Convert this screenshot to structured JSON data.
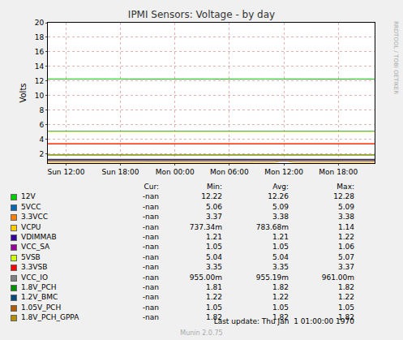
{
  "chart_data": {
    "type": "line",
    "title": "IPMI Sensors: Voltage - by day",
    "y_label": "Volts",
    "categories": [
      null,
      null,
      "Sun 12:00",
      null,
      null,
      null,
      null,
      null,
      "Sun 18:00",
      null,
      null,
      null,
      null,
      null,
      "Mon 00:00",
      null,
      null,
      null,
      null,
      null,
      "Mon 06:00",
      null,
      null,
      null,
      null,
      null,
      "Mon 12:00",
      null,
      null,
      null,
      null,
      null,
      "Mon 18:00",
      null,
      null,
      null,
      null
    ],
    "ylim": [
      0.7,
      20
    ],
    "yticks": [
      2,
      4,
      6,
      8,
      10,
      12,
      14,
      16,
      18,
      20
    ],
    "grid": true,
    "series": [
      {
        "name": "12V",
        "color": "#00CC00",
        "stats": {
          "cur": "-nan",
          "min": "12.22",
          "avg": "12.26",
          "max": "12.28"
        },
        "values": [
          12.26,
          12.27,
          12.25,
          12.26,
          12.28,
          12.26,
          12.24,
          12.26,
          12.27,
          12.25,
          12.26,
          12.22,
          12.26,
          12.27,
          12.26,
          12.25,
          12.26,
          12.28,
          12.26,
          12.25,
          12.27,
          12.26,
          12.24,
          12.26,
          12.27,
          12.26,
          12.25,
          12.26,
          12.28,
          12.26,
          12.25,
          12.26,
          12.27,
          12.24,
          12.26,
          12.26,
          12.25
        ]
      },
      {
        "name": "5VCC",
        "color": "#0066B3",
        "stats": {
          "cur": "-nan",
          "min": "5.06",
          "avg": "5.09",
          "max": "5.09"
        },
        "values": [
          5.09,
          5.09,
          5.09,
          5.08,
          5.09,
          5.09,
          5.09,
          5.09,
          5.08,
          5.09,
          5.09,
          5.09,
          5.06,
          5.09,
          5.09,
          5.09,
          5.08,
          5.09,
          5.09,
          5.09,
          5.09,
          5.08,
          5.09,
          5.09,
          5.09,
          5.09,
          5.09,
          5.08,
          5.09,
          5.09,
          5.09,
          5.09,
          5.09,
          5.08,
          5.09,
          5.09,
          5.09
        ]
      },
      {
        "name": "3.3VCC",
        "color": "#FF8000",
        "stats": {
          "cur": "-nan",
          "min": "3.37",
          "avg": "3.38",
          "max": "3.38"
        },
        "values": [
          3.38,
          3.38,
          3.37,
          3.38,
          3.38,
          3.38,
          3.38,
          3.37,
          3.38,
          3.38,
          3.38,
          3.38,
          3.38,
          3.37,
          3.38,
          3.38,
          3.38,
          3.38,
          3.38,
          3.37,
          3.38,
          3.38,
          3.38,
          3.38,
          3.37,
          3.38,
          3.38,
          3.38,
          3.38,
          3.38,
          3.37,
          3.38,
          3.38,
          3.38,
          3.38,
          3.37,
          3.38
        ]
      },
      {
        "name": "VCPU",
        "color": "#FFCC00",
        "stats": {
          "cur": "-nan",
          "min": "737.34m",
          "avg": "783.68m",
          "max": "1.14"
        },
        "values": [
          0.78,
          0.77,
          0.8,
          0.76,
          0.79,
          0.74,
          0.78,
          0.81,
          0.77,
          0.78,
          0.76,
          0.79,
          0.78,
          0.77,
          0.8,
          0.76,
          0.78,
          0.77,
          0.79,
          0.76,
          0.78,
          0.77,
          0.76,
          0.79,
          0.78,
          0.77,
          1.14,
          0.78,
          0.76,
          0.79,
          0.77,
          0.78,
          0.8,
          0.76,
          0.78,
          0.77,
          0.79
        ]
      },
      {
        "name": "VDIMMAB",
        "color": "#330099",
        "stats": {
          "cur": "-nan",
          "min": "1.21",
          "avg": "1.21",
          "max": "1.22"
        },
        "values": [
          1.21,
          1.21,
          1.22,
          1.21,
          1.21,
          1.21,
          1.21,
          1.22,
          1.21,
          1.21,
          1.21,
          1.21,
          1.21,
          1.21,
          1.22,
          1.21,
          1.21,
          1.21,
          1.21,
          1.21,
          1.21,
          1.22,
          1.21,
          1.21,
          1.21,
          1.21,
          1.21,
          1.21,
          1.22,
          1.21,
          1.21,
          1.21,
          1.21,
          1.21,
          1.22,
          1.21,
          1.21
        ]
      },
      {
        "name": "VCC_SA",
        "color": "#990099",
        "stats": {
          "cur": "-nan",
          "min": "1.05",
          "avg": "1.05",
          "max": "1.06"
        },
        "values": [
          1.05,
          1.05,
          1.05,
          1.05,
          1.05,
          1.05,
          1.05,
          1.05,
          1.05,
          1.05,
          1.05,
          1.05,
          1.05,
          1.05,
          1.05,
          1.05,
          1.05,
          1.05,
          1.06,
          1.05,
          1.05,
          1.05,
          1.05,
          1.05,
          1.05,
          1.05,
          1.05,
          1.05,
          1.05,
          1.05,
          1.05,
          1.05,
          1.05,
          1.05,
          1.05,
          1.05,
          1.05
        ]
      },
      {
        "name": "5VSB",
        "color": "#CCFF00",
        "stats": {
          "cur": "-nan",
          "min": "5.04",
          "avg": "5.04",
          "max": "5.07"
        },
        "values": [
          5.04,
          5.04,
          5.04,
          5.04,
          5.04,
          5.04,
          5.04,
          5.04,
          5.04,
          5.04,
          5.04,
          5.04,
          5.04,
          5.04,
          5.04,
          5.04,
          5.04,
          5.04,
          5.04,
          5.04,
          5.04,
          5.04,
          5.04,
          5.07,
          5.04,
          5.04,
          5.04,
          5.04,
          5.04,
          5.04,
          5.04,
          5.04,
          5.04,
          5.04,
          5.04,
          5.04,
          5.04
        ]
      },
      {
        "name": "3.3VSB",
        "color": "#FF0000",
        "stats": {
          "cur": "-nan",
          "min": "3.35",
          "avg": "3.35",
          "max": "3.37"
        },
        "values": [
          3.35,
          3.35,
          3.35,
          3.35,
          3.35,
          3.35,
          3.35,
          3.35,
          3.35,
          3.35,
          3.35,
          3.35,
          3.35,
          3.35,
          3.35,
          3.35,
          3.37,
          3.35,
          3.35,
          3.35,
          3.35,
          3.35,
          3.35,
          3.35,
          3.35,
          3.35,
          3.35,
          3.35,
          3.35,
          3.35,
          3.35,
          3.35,
          3.35,
          3.35,
          3.35,
          3.35,
          3.35
        ]
      },
      {
        "name": "VCC_IO",
        "color": "#808080",
        "stats": {
          "cur": "-nan",
          "min": "955.00m",
          "avg": "955.19m",
          "max": "961.00m"
        },
        "values": [
          0.955,
          0.955,
          0.955,
          0.955,
          0.955,
          0.955,
          0.955,
          0.955,
          0.955,
          0.961,
          0.955,
          0.955,
          0.955,
          0.955,
          0.955,
          0.955,
          0.955,
          0.955,
          0.955,
          0.955,
          0.955,
          0.955,
          0.955,
          0.955,
          0.955,
          0.955,
          0.955,
          0.955,
          0.955,
          0.955,
          0.961,
          0.955,
          0.955,
          0.955,
          0.955,
          0.955,
          0.955
        ]
      },
      {
        "name": "1.8V_PCH",
        "color": "#008F00",
        "stats": {
          "cur": "-nan",
          "min": "1.81",
          "avg": "1.82",
          "max": "1.82"
        },
        "values": [
          1.82,
          1.82,
          1.82,
          1.82,
          1.82,
          1.82,
          1.82,
          1.82,
          1.82,
          1.82,
          1.82,
          1.82,
          1.82,
          1.82,
          1.82,
          1.82,
          1.82,
          1.82,
          1.82,
          1.82,
          1.82,
          1.82,
          1.82,
          1.82,
          1.82,
          1.82,
          1.82,
          1.82,
          1.81,
          1.82,
          1.82,
          1.82,
          1.82,
          1.82,
          1.82,
          1.82,
          1.82
        ]
      },
      {
        "name": "1.2V_BMC",
        "color": "#00487D",
        "stats": {
          "cur": "-nan",
          "min": "1.22",
          "avg": "1.22",
          "max": "1.22"
        },
        "values": [
          1.22,
          1.22,
          1.22,
          1.22,
          1.22,
          1.22,
          1.22,
          1.22,
          1.22,
          1.22,
          1.22,
          1.22,
          1.22,
          1.22,
          1.22,
          1.22,
          1.22,
          1.22,
          1.22,
          1.22,
          1.22,
          1.22,
          1.22,
          1.22,
          1.22,
          1.22,
          1.22,
          1.22,
          1.22,
          1.22,
          1.22,
          1.22,
          1.22,
          1.22,
          1.22,
          1.22,
          1.22
        ]
      },
      {
        "name": "1.05V_PCH",
        "color": "#B35A00",
        "stats": {
          "cur": "-nan",
          "min": "1.05",
          "avg": "1.05",
          "max": "1.05"
        },
        "values": [
          1.05,
          1.05,
          1.05,
          1.05,
          1.05,
          1.05,
          1.05,
          1.05,
          1.05,
          1.05,
          1.05,
          1.05,
          1.05,
          1.05,
          1.05,
          1.05,
          1.05,
          1.05,
          1.05,
          1.05,
          1.05,
          1.05,
          1.05,
          1.05,
          1.05,
          1.05,
          1.05,
          1.05,
          1.05,
          1.05,
          1.05,
          1.05,
          1.05,
          1.05,
          1.05,
          1.05,
          1.05
        ]
      },
      {
        "name": "1.8V_PCH_GPPA",
        "color": "#B38F00",
        "stats": {
          "cur": "-nan",
          "min": "1.82",
          "avg": "1.82",
          "max": "1.82"
        },
        "values": [
          1.82,
          1.82,
          1.82,
          1.82,
          1.82,
          1.82,
          1.82,
          1.82,
          1.82,
          1.82,
          1.82,
          1.82,
          1.82,
          1.82,
          1.82,
          1.82,
          1.82,
          1.82,
          1.82,
          1.82,
          1.82,
          1.82,
          1.82,
          1.82,
          1.82,
          1.82,
          1.82,
          1.82,
          1.82,
          1.82,
          1.82,
          1.82,
          1.82,
          1.82,
          1.82,
          1.82,
          1.82
        ]
      }
    ],
    "stat_headers": [
      "Cur:",
      "Min:",
      "Avg:",
      "Max:"
    ],
    "watermark": "RRDTOOL / TOBI OETIKER",
    "last_update": "Last update: Thu Jan  1 01:00:00 1970",
    "footer": "Munin 2.0.75"
  }
}
